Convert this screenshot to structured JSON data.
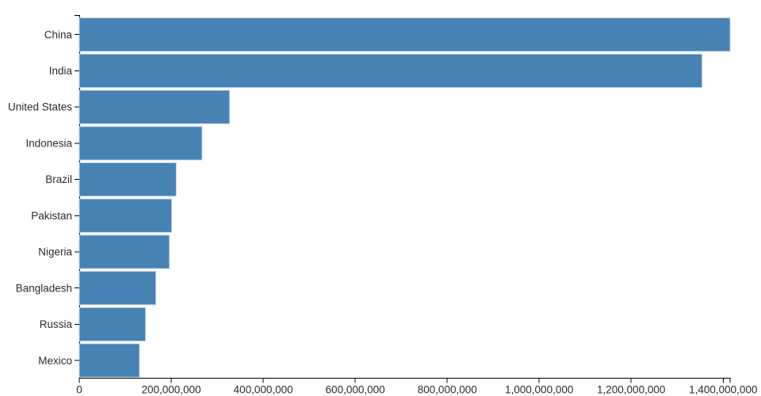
{
  "page": {
    "background_color": "#ffffff"
  },
  "chart_data": {
    "type": "bar",
    "orientation": "horizontal",
    "title": "",
    "xlabel": "",
    "ylabel": "",
    "categories": [
      "China",
      "India",
      "United States",
      "Indonesia",
      "Brazil",
      "Pakistan",
      "Nigeria",
      "Bangladesh",
      "Russia",
      "Mexico"
    ],
    "values": [
      1415045928,
      1354051854,
      326766748,
      266794980,
      210867954,
      200813818,
      195875237,
      166368149,
      143964709,
      130759074
    ],
    "xlim": [
      0,
      1415045928
    ],
    "x_ticks": [
      0,
      200000000,
      400000000,
      600000000,
      800000000,
      1000000000,
      1200000000,
      1400000000
    ],
    "x_tick_labels": [
      "0",
      "200,000,000",
      "400,000,000",
      "600,000,000",
      "800,000,000",
      "1,000,000,000",
      "1,200,000,000",
      "1,400,000,000"
    ],
    "grid": false,
    "legend_position": "none",
    "bar_color": "#4682b4",
    "axis_color": "#000000",
    "text_color": "#2b2b2b"
  }
}
